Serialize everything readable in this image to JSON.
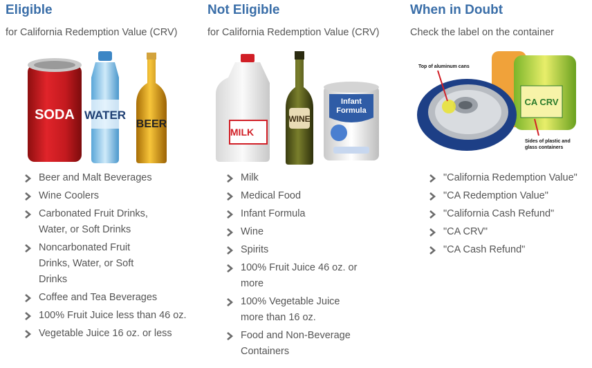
{
  "eligible": {
    "title": "Eligible",
    "subtitle": "for California Redemption Value (CRV)",
    "image_labels": {
      "soda": "SODA",
      "water": "WATER",
      "beer": "BEER"
    },
    "items": [
      "Beer and Malt Beverages",
      "Wine Coolers",
      "Carbonated Fruit Drinks, Water, or Soft Drinks",
      "Noncarbonated Fruit Drinks, Water, or Soft Drinks",
      "Coffee and Tea Beverages",
      "100% Fruit Juice less than 46 oz.",
      "Vegetable Juice 16 oz. or less"
    ]
  },
  "not_eligible": {
    "title": "Not Eligible",
    "subtitle": "for California Redemption Value (CRV)",
    "image_labels": {
      "milk": "MILK",
      "wine": "WINE",
      "formula_line1": "Infant",
      "formula_line2": "Formula"
    },
    "items": [
      "Milk",
      "Medical Food",
      "Infant Formula",
      "Wine",
      "Spirits",
      "100% Fruit Juice 46 oz. or more",
      "100% Vegetable Juice more than 16 oz.",
      "Food and Non-Beverage Containers"
    ]
  },
  "doubt": {
    "title": "When in Doubt",
    "subtitle": "Check the label on the container",
    "image_labels": {
      "top_caption": "Top of aluminum cans",
      "side_caption_line1": "Sides of plastic and",
      "side_caption_line2": "glass containers",
      "crv_mark": "CA CRV"
    },
    "items": [
      "\"California Redemption Value\"",
      "\"CA Redemption Value\"",
      "\"California Cash Refund\"",
      "\"CA CRV\"",
      "\"CA Cash Refund\""
    ]
  },
  "colors": {
    "heading": "#3a6ea8",
    "text": "#555555",
    "chevron": "#6b6b6b"
  }
}
